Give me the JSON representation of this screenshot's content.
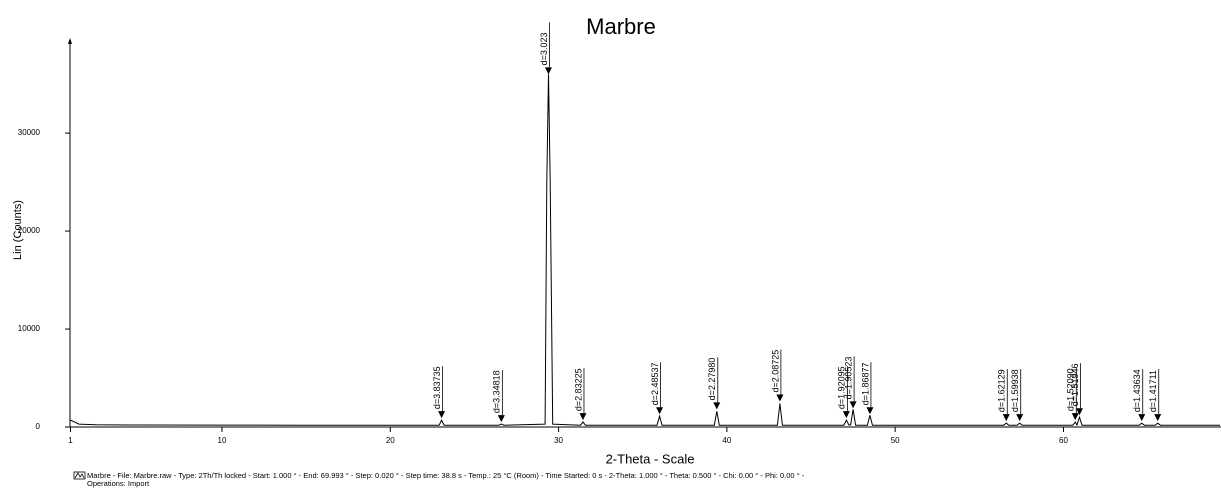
{
  "chart_data": {
    "type": "line",
    "title": "Marbre",
    "x_label": "2-Theta - Scale",
    "y_label": "Lin (Counts)",
    "color": "#000000",
    "x": [
      1,
      1.5,
      2.5,
      5,
      10,
      15,
      20,
      22.9,
      23.05,
      23.2,
      26.45,
      26.6,
      26.75,
      29.2,
      29.3,
      29.4,
      29.5,
      29.65,
      31.3,
      31.45,
      31.6,
      35.85,
      36.0,
      36.15,
      39.25,
      39.4,
      39.55,
      43.0,
      43.15,
      43.3,
      46.95,
      47.1,
      47.25,
      47.35,
      47.5,
      47.65,
      48.35,
      48.5,
      48.65,
      56.45,
      56.6,
      56.75,
      57.25,
      57.4,
      57.55,
      60.55,
      60.7,
      60.8,
      60.95,
      61.1,
      64.5,
      64.65,
      64.8,
      65.45,
      65.6,
      65.75,
      69.3
    ],
    "values": [
      700,
      300,
      220,
      200,
      190,
      185,
      180,
      180,
      700,
      180,
      180,
      300,
      180,
      300,
      25000,
      36000,
      25000,
      300,
      180,
      500,
      180,
      180,
      1100,
      180,
      180,
      1600,
      180,
      180,
      2400,
      180,
      180,
      700,
      200,
      200,
      1800,
      180,
      180,
      1200,
      180,
      180,
      400,
      180,
      180,
      400,
      180,
      180,
      500,
      200,
      1000,
      180,
      180,
      400,
      180,
      180,
      400,
      180,
      170
    ],
    "peaks": [
      {
        "x": 23.05,
        "y": 900,
        "label": "d=3.83735"
      },
      {
        "x": 26.6,
        "y": 500,
        "label": "d=3.34818"
      },
      {
        "x": 29.4,
        "y": 36000,
        "label": "d=3.023"
      },
      {
        "x": 31.45,
        "y": 700,
        "label": "d=2.83225"
      },
      {
        "x": 36.0,
        "y": 1300,
        "label": "d=2.48537"
      },
      {
        "x": 39.4,
        "y": 1800,
        "label": "d=2.27980"
      },
      {
        "x": 43.15,
        "y": 2600,
        "label": "d=2.08725"
      },
      {
        "x": 47.1,
        "y": 900,
        "label": "d=1.92095"
      },
      {
        "x": 47.5,
        "y": 1900,
        "label": "d=1.90523"
      },
      {
        "x": 48.5,
        "y": 1300,
        "label": "d=1.86877"
      },
      {
        "x": 56.6,
        "y": 600,
        "label": "d=1.62129"
      },
      {
        "x": 57.4,
        "y": 600,
        "label": "d=1.59938"
      },
      {
        "x": 60.7,
        "y": 700,
        "label": "d=1.52090"
      },
      {
        "x": 60.95,
        "y": 1200,
        "label": "d=1.51946"
      },
      {
        "x": 64.65,
        "y": 600,
        "label": "d=1.43634"
      },
      {
        "x": 65.6,
        "y": 600,
        "label": "d=1.41711"
      }
    ],
    "xlim": [
      1,
      69.3
    ],
    "xticks": [
      1,
      10,
      20,
      30,
      40,
      50,
      60
    ],
    "ylim": [
      0,
      39300
    ],
    "yticks": [
      0,
      10000,
      20000,
      30000
    ],
    "footer": [
      "Marbre - File: Marbre.raw - Type: 2Th/Th locked - Start: 1.000 ° - End: 69.993 ° - Step: 0.020 ° - Step time: 38.8 s - Temp.: 25 °C (Room) - Time Started: 0 s - 2-Theta: 1.000 ° - Theta: 0.500 ° - Chi: 0.00 ° - Phi: 0.00 ° -",
      "Operations: Import"
    ]
  }
}
